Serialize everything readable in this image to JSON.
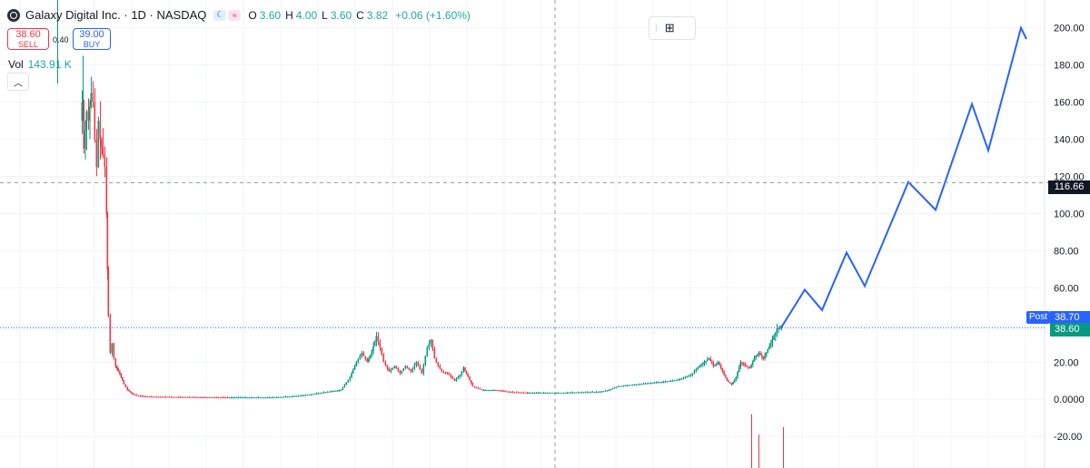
{
  "header": {
    "symbol_title": "Galaxy Digital Inc. · 1D · NASDAQ",
    "moon_icon": "moon-icon",
    "wave_icon": "wave-icon",
    "ohlc": [
      {
        "k": "O",
        "v": "3.60"
      },
      {
        "k": "H",
        "v": "4.00"
      },
      {
        "k": "L",
        "v": "3.60"
      },
      {
        "k": "C",
        "v": "3.82"
      }
    ],
    "change": "+0.06 (+1.60%)"
  },
  "trade": {
    "sell_price": "38.60",
    "sell_label": "SELL",
    "spread": "0.40",
    "buy_price": "39.00",
    "buy_label": "BUY"
  },
  "volume": {
    "label": "Vol",
    "value": "143.91 K"
  },
  "labels": {
    "crosshair_price": "116.66",
    "post_tag": "Post",
    "post_price": "38.70",
    "last_price": "38.60"
  },
  "colors": {
    "up": "#089981",
    "down": "#f23645",
    "projection": "#2962ff",
    "grid": "#f0f3fa",
    "crosshair": "#9598a1",
    "post_line": "#2962ff"
  },
  "chart_data": {
    "type": "candlestick",
    "y_axis": {
      "ticks": [
        200,
        180,
        160,
        140,
        120,
        100,
        80,
        60,
        40,
        20,
        0,
        -20
      ],
      "tick_labels": [
        "200.00",
        "180.00",
        "160.00",
        "140.00",
        "120.00",
        "100.00",
        "80.00",
        "60.00",
        "40.00",
        "20.00",
        "0.0000",
        "-20.00"
      ],
      "range": [
        -37,
        215
      ]
    },
    "x_axis": {
      "range": [
        0,
        1150
      ]
    },
    "price_series": {
      "name": "Galaxy Digital Inc.",
      "points": [
        [
          88,
          150
        ],
        [
          90,
          160
        ],
        [
          92,
          135
        ],
        [
          95,
          155
        ],
        [
          97,
          150
        ],
        [
          100,
          165
        ],
        [
          102,
          160
        ],
        [
          104,
          140
        ],
        [
          106,
          125
        ],
        [
          108,
          150
        ],
        [
          110,
          140
        ],
        [
          113,
          132
        ],
        [
          115,
          125
        ],
        [
          117,
          100
        ],
        [
          118,
          70
        ],
        [
          119,
          45
        ],
        [
          121,
          25
        ],
        [
          123,
          30
        ],
        [
          125,
          22
        ],
        [
          127,
          18
        ],
        [
          130,
          15
        ],
        [
          133,
          12
        ],
        [
          136,
          8
        ],
        [
          140,
          5
        ],
        [
          145,
          3
        ],
        [
          150,
          2
        ],
        [
          160,
          1.5
        ],
        [
          200,
          1.2
        ],
        [
          250,
          1
        ],
        [
          300,
          1
        ],
        [
          320,
          1.5
        ],
        [
          340,
          2.5
        ],
        [
          360,
          4
        ],
        [
          375,
          5
        ],
        [
          385,
          12
        ],
        [
          392,
          20
        ],
        [
          398,
          25
        ],
        [
          404,
          20
        ],
        [
          409,
          26
        ],
        [
          414,
          34
        ],
        [
          418,
          28
        ],
        [
          422,
          20
        ],
        [
          428,
          15
        ],
        [
          434,
          18
        ],
        [
          440,
          14
        ],
        [
          446,
          18
        ],
        [
          452,
          15
        ],
        [
          458,
          20
        ],
        [
          464,
          14
        ],
        [
          470,
          28
        ],
        [
          474,
          32
        ],
        [
          478,
          22
        ],
        [
          482,
          18
        ],
        [
          486,
          15
        ],
        [
          492,
          14
        ],
        [
          496,
          12
        ],
        [
          500,
          10
        ],
        [
          506,
          13
        ],
        [
          510,
          17
        ],
        [
          515,
          12
        ],
        [
          520,
          7
        ],
        [
          530,
          5
        ],
        [
          545,
          5
        ],
        [
          560,
          4
        ],
        [
          580,
          3.5
        ],
        [
          600,
          3.5
        ],
        [
          620,
          3.5
        ],
        [
          640,
          3.8
        ],
        [
          660,
          4
        ],
        [
          670,
          5
        ],
        [
          680,
          7
        ],
        [
          700,
          8
        ],
        [
          720,
          9
        ],
        [
          740,
          10
        ],
        [
          750,
          11
        ],
        [
          760,
          13
        ],
        [
          770,
          18
        ],
        [
          775,
          20
        ],
        [
          780,
          22
        ],
        [
          785,
          18
        ],
        [
          790,
          20
        ],
        [
          795,
          15
        ],
        [
          800,
          10
        ],
        [
          805,
          8
        ],
        [
          810,
          12
        ],
        [
          815,
          20
        ],
        [
          820,
          18
        ],
        [
          825,
          17
        ],
        [
          830,
          22
        ],
        [
          835,
          25
        ],
        [
          840,
          22
        ],
        [
          845,
          27
        ],
        [
          850,
          32
        ],
        [
          855,
          38
        ],
        [
          860,
          38.6
        ]
      ]
    },
    "projection": {
      "points": [
        [
          860,
          38.6
        ],
        [
          886,
          59
        ],
        [
          905,
          48
        ],
        [
          932,
          79
        ],
        [
          952,
          61
        ],
        [
          1000,
          117
        ],
        [
          1030,
          102
        ],
        [
          1070,
          159
        ],
        [
          1088,
          134
        ],
        [
          1124,
          200
        ],
        [
          1130,
          194
        ]
      ]
    },
    "volume_bars": [
      [
        827,
        -37,
        -8
      ],
      [
        835,
        -37,
        -19
      ],
      [
        862,
        -37,
        -15
      ]
    ],
    "early_volume_bars": [
      [
        63,
        170,
        215
      ],
      [
        91,
        150,
        185
      ]
    ],
    "crosshair": {
      "x": 611,
      "y": 116.66
    },
    "last_price_line": 38.6,
    "grid": true
  }
}
